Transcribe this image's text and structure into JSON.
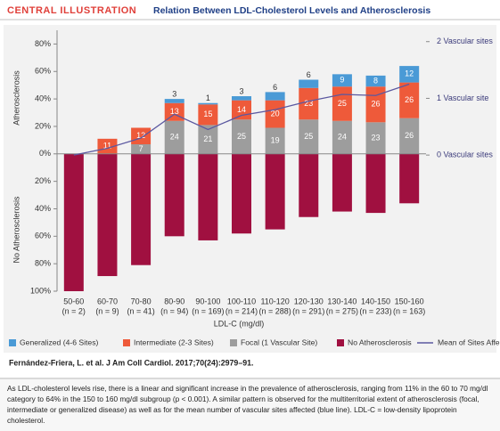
{
  "header_label": "CENTRAL ILLUSTRATION",
  "citation": "Fernández-Friera, L. et al. J Am Coll Cardiol. 2017;70(24):2979–91.",
  "caption": "As LDL-cholesterol levels rise, there is a linear and significant increase in the prevalence of atherosclerosis, ranging from 11% in the 60 to 70 mg/dl category to 64% in the 150 to 160 mg/dl subgroup (p < 0.001). A similar pattern is observed for the multiterritorial extent of atherosclerosis (focal, intermediate or generalized disease) as well as for the mean number of vascular sites affected (blue line). LDL-C = low-density lipoprotein cholesterol.",
  "chart_data": {
    "type": "bar",
    "stacked": true,
    "title": "Relation Between LDL-Cholesterol Levels and Atherosclerosis",
    "x_label": "LDL-C (mg/dl)",
    "y_label_top": "Atherosclerosis",
    "y_label_bottom": "No Atherosclerosis",
    "categories": [
      "50-60",
      "60-70",
      "70-80",
      "80-90",
      "90-100",
      "100-110",
      "110-120",
      "120-130",
      "130-140",
      "140-150",
      "150-160"
    ],
    "sample_sizes": [
      "(n = 2)",
      "(n = 9)",
      "(n = 41)",
      "(n = 94)",
      "(n = 169)",
      "(n = 214)",
      "(n = 288)",
      "(n = 291)",
      "(n = 275)",
      "(n = 233)",
      "(n = 163)"
    ],
    "ylim": [
      -100,
      90
    ],
    "yticks": [
      {
        "value": 80,
        "label": "80%"
      },
      {
        "value": 60,
        "label": "60%"
      },
      {
        "value": 40,
        "label": "40%"
      },
      {
        "value": 20,
        "label": "20%"
      },
      {
        "value": 0,
        "label": "0%"
      },
      {
        "value": -20,
        "label": "20%"
      },
      {
        "value": -40,
        "label": "40%"
      },
      {
        "value": -60,
        "label": "60%"
      },
      {
        "value": -80,
        "label": "80%"
      },
      {
        "value": -100,
        "label": "100%"
      }
    ],
    "y2lim": [
      -2.4,
      2.2
    ],
    "y2ticks": [
      {
        "value": 2,
        "label": "2 Vascular sites"
      },
      {
        "value": 1,
        "label": "1 Vascular site"
      },
      {
        "value": 0,
        "label": "0 Vascular sites"
      }
    ],
    "grid": false,
    "legend": "bottom",
    "series": [
      {
        "name": "Focal (1 Vascular Site)",
        "color": "#9d9d9d",
        "values": [
          0,
          0,
          7,
          24,
          21,
          25,
          19,
          25,
          24,
          23,
          26
        ]
      },
      {
        "name": "Intermediate (2-3 Sites)",
        "color": "#ee5a3a",
        "values": [
          0,
          11,
          12,
          13,
          15,
          14,
          20,
          23,
          25,
          26,
          26
        ]
      },
      {
        "name": "Generalized (4-6 Sites)",
        "color": "#4a9ad6",
        "values": [
          0,
          0,
          0,
          3,
          1,
          3,
          6,
          6,
          9,
          8,
          12
        ]
      },
      {
        "name": "No Atherosclerosis",
        "color": "#a01040",
        "values": [
          -100,
          -89,
          -81,
          -60,
          -63,
          -58,
          -55,
          -46,
          -42,
          -43,
          -36
        ]
      },
      {
        "name": "Mean of Sites Affected",
        "color": "#5b58a0",
        "type": "line",
        "axis": "y2",
        "values": [
          0,
          0.12,
          0.3,
          0.72,
          0.45,
          0.7,
          0.8,
          0.95,
          1.07,
          1.05,
          1.25
        ]
      }
    ]
  }
}
